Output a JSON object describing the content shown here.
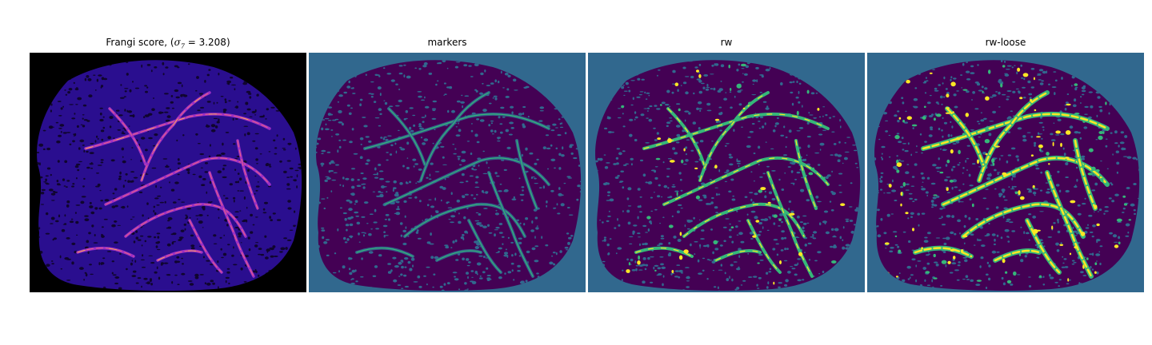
{
  "figure": {
    "panels": [
      {
        "title_prefix": "Frangi score, (",
        "title_math": "σ",
        "title_sub": "7",
        "title_suffix": " = 3.208)",
        "background_color": "#000000",
        "tissue_color": "#2a0e8f",
        "vessel_colors": [
          "#9b2fc4",
          "#e25b8a",
          "#f7a35b"
        ]
      },
      {
        "title": "markers",
        "background_color": "#31688e",
        "tissue_color": "#440154",
        "vessel_colors": [
          "#31688e",
          "#35b779"
        ]
      },
      {
        "title": "rw",
        "background_color": "#31688e",
        "tissue_color": "#440154",
        "vessel_colors": [
          "#35b779",
          "#fde725"
        ]
      },
      {
        "title": "rw-loose",
        "background_color": "#31688e",
        "tissue_color": "#440154",
        "vessel_colors": [
          "#35b779",
          "#fde725"
        ]
      }
    ]
  }
}
